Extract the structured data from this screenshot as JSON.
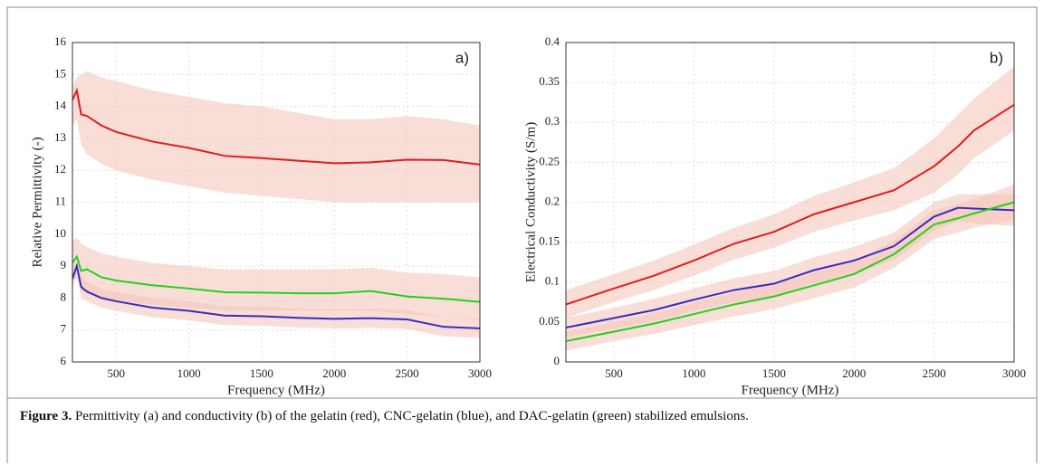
{
  "charts": [
    {
      "chart_data": {
        "type": "line",
        "annotation": "a)",
        "xlabel": "Frequency (MHz)",
        "ylabel": "Relative Permittivity (-)",
        "xlim": [
          200,
          3000
        ],
        "xticks": [
          500,
          1000,
          1500,
          2000,
          2500,
          3000
        ],
        "ylim": [
          6,
          16
        ],
        "yticks": [
          6,
          7,
          8,
          9,
          10,
          11,
          12,
          13,
          14,
          15,
          16
        ],
        "grid": true,
        "x": [
          200,
          230,
          260,
          300,
          400,
          500,
          750,
          1000,
          1250,
          1500,
          1750,
          2000,
          2250,
          2500,
          2750,
          3000
        ],
        "band_color": "#f4c3b8",
        "series": [
          {
            "color": "#e31a1c",
            "values": [
              14.2,
              14.5,
              13.75,
              13.7,
              13.4,
              13.2,
              12.9,
              12.7,
              12.45,
              12.38,
              12.3,
              12.22,
              12.25,
              12.33,
              12.32,
              12.18
            ],
            "upper": [
              14.6,
              14.9,
              15.0,
              15.1,
              14.9,
              14.8,
              14.5,
              14.3,
              14.1,
              14.0,
              13.8,
              13.6,
              13.6,
              13.7,
              13.6,
              13.4
            ],
            "lower": [
              13.4,
              13.6,
              12.8,
              12.5,
              12.2,
              12.0,
              11.7,
              11.5,
              11.3,
              11.2,
              11.1,
              11.0,
              11.0,
              11.0,
              11.0,
              11.0
            ]
          },
          {
            "color": "#22d11a",
            "values": [
              9.1,
              9.3,
              8.85,
              8.9,
              8.65,
              8.55,
              8.4,
              8.3,
              8.18,
              8.17,
              8.15,
              8.15,
              8.22,
              8.05,
              7.98,
              7.88
            ],
            "upper": [
              9.8,
              9.9,
              9.7,
              9.6,
              9.4,
              9.3,
              9.1,
              9.0,
              8.9,
              8.9,
              8.9,
              8.9,
              8.95,
              8.8,
              8.75,
              8.65
            ],
            "lower": [
              8.5,
              8.6,
              8.2,
              8.2,
              8.0,
              7.9,
              7.8,
              7.7,
              7.6,
              7.6,
              7.6,
              7.6,
              7.6,
              7.5,
              7.4,
              7.3
            ]
          },
          {
            "color": "#3a2bc0",
            "values": [
              8.6,
              9.0,
              8.35,
              8.2,
              8.0,
              7.9,
              7.7,
              7.6,
              7.45,
              7.43,
              7.38,
              7.35,
              7.37,
              7.33,
              7.1,
              7.05
            ],
            "upper": [
              8.9,
              9.2,
              8.7,
              8.5,
              8.3,
              8.2,
              8.0,
              7.9,
              7.75,
              7.73,
              7.68,
              7.65,
              7.67,
              7.63,
              7.4,
              7.35
            ],
            "lower": [
              8.3,
              8.8,
              8.0,
              7.9,
              7.7,
              7.6,
              7.4,
              7.3,
              7.15,
              7.13,
              7.08,
              7.05,
              7.07,
              7.03,
              6.8,
              6.75
            ]
          }
        ]
      }
    },
    {
      "chart_data": {
        "type": "line",
        "annotation": "b)",
        "xlabel": "Frequency (MHz)",
        "ylabel": "Electrical Conductivity (S/m)",
        "xlim": [
          200,
          3000
        ],
        "xticks": [
          500,
          1000,
          1500,
          2000,
          2500,
          3000
        ],
        "ylim": [
          0,
          0.4
        ],
        "yticks": [
          0,
          0.05,
          0.1,
          0.15,
          0.2,
          0.25,
          0.3,
          0.35,
          0.4
        ],
        "grid": true,
        "x": [
          200,
          500,
          750,
          1000,
          1250,
          1500,
          1750,
          2000,
          2250,
          2500,
          2650,
          2750,
          3000
        ],
        "band_color": "#f4c3b8",
        "series": [
          {
            "color": "#e31a1c",
            "values": [
              0.072,
              0.092,
              0.108,
              0.127,
              0.148,
              0.163,
              0.185,
              0.2,
              0.215,
              0.245,
              0.27,
              0.29,
              0.322
            ],
            "upper": [
              0.09,
              0.11,
              0.127,
              0.147,
              0.168,
              0.185,
              0.208,
              0.225,
              0.243,
              0.28,
              0.31,
              0.33,
              0.37
            ],
            "lower": [
              0.055,
              0.075,
              0.09,
              0.108,
              0.128,
              0.143,
              0.163,
              0.177,
              0.19,
              0.212,
              0.235,
              0.255,
              0.29
            ]
          },
          {
            "color": "#3a2bc0",
            "values": [
              0.043,
              0.055,
              0.065,
              0.078,
              0.09,
              0.098,
              0.115,
              0.127,
              0.145,
              0.182,
              0.193,
              0.192,
              0.19
            ],
            "upper": [
              0.055,
              0.068,
              0.079,
              0.092,
              0.105,
              0.114,
              0.131,
              0.144,
              0.162,
              0.2,
              0.21,
              0.21,
              0.21
            ],
            "lower": [
              0.031,
              0.042,
              0.051,
              0.064,
              0.075,
              0.082,
              0.099,
              0.11,
              0.128,
              0.164,
              0.176,
              0.174,
              0.17
            ]
          },
          {
            "color": "#22d11a",
            "values": [
              0.026,
              0.038,
              0.048,
              0.06,
              0.072,
              0.082,
              0.096,
              0.11,
              0.135,
              0.172,
              0.18,
              0.186,
              0.2
            ],
            "upper": [
              0.038,
              0.05,
              0.061,
              0.074,
              0.087,
              0.098,
              0.112,
              0.127,
              0.152,
              0.19,
              0.198,
              0.204,
              0.222
            ],
            "lower": [
              0.014,
              0.026,
              0.035,
              0.046,
              0.057,
              0.066,
              0.08,
              0.093,
              0.118,
              0.154,
              0.162,
              0.168,
              0.178
            ]
          }
        ]
      }
    }
  ],
  "caption": {
    "label": "Figure 3.",
    "text": " Permittivity (a) and conductivity (b) of the gelatin (red), CNC-gelatin (blue), and DAC-gelatin (green) stabilized emulsions."
  }
}
